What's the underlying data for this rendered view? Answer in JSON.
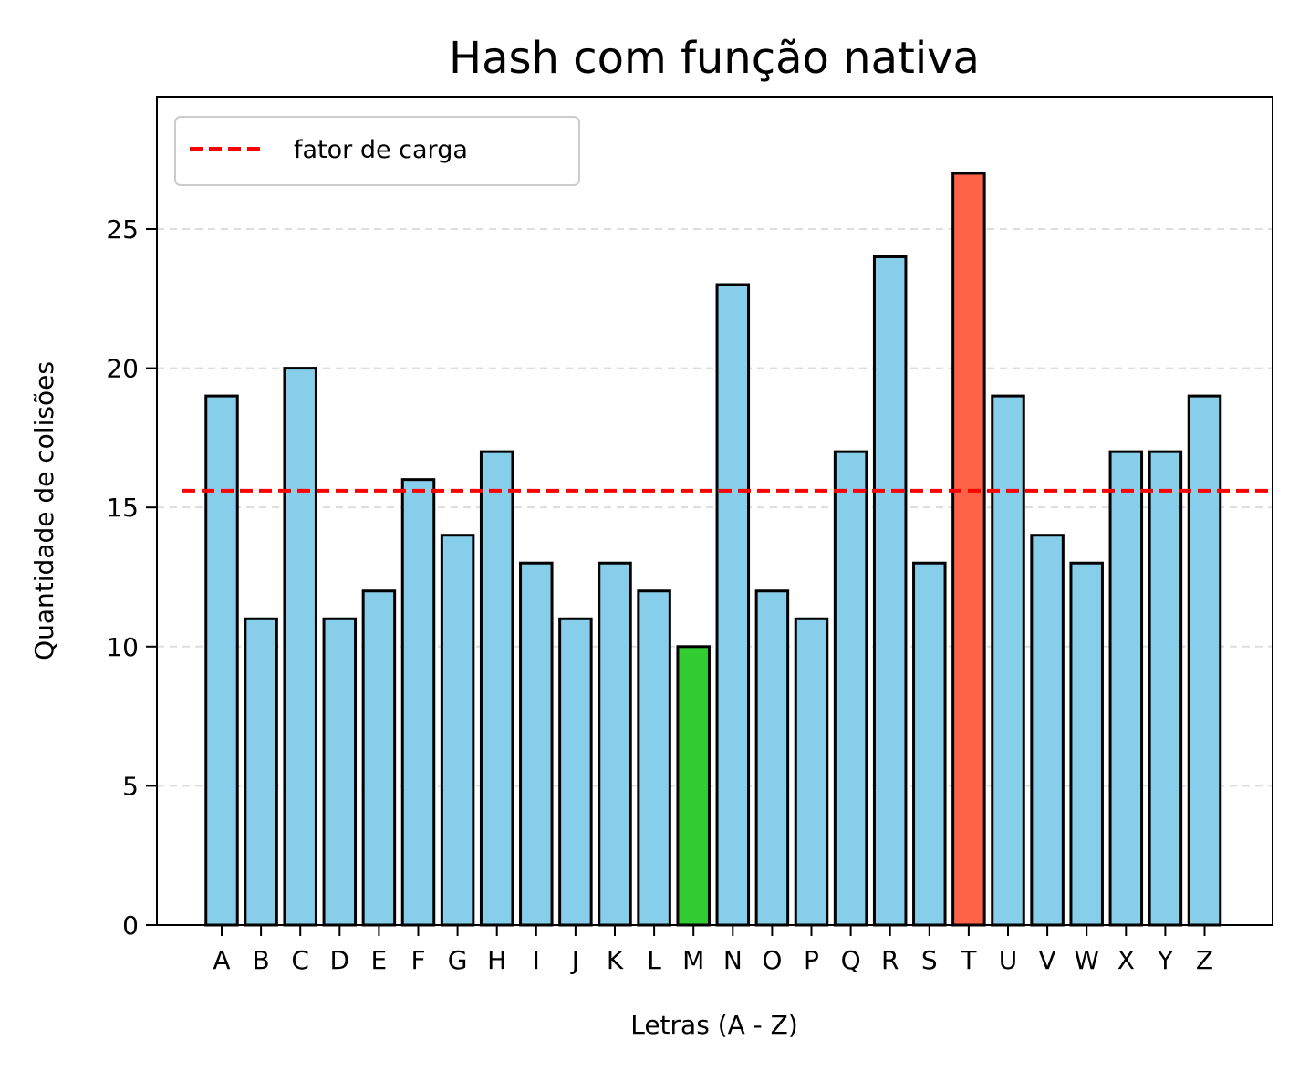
{
  "chart_data": {
    "type": "bar",
    "title": "Hash com função nativa",
    "xlabel": "Letras (A - Z)",
    "ylabel": "Quantidade de colisões",
    "categories": [
      "A",
      "B",
      "C",
      "D",
      "E",
      "F",
      "G",
      "H",
      "I",
      "J",
      "K",
      "L",
      "M",
      "N",
      "O",
      "P",
      "Q",
      "R",
      "S",
      "T",
      "U",
      "V",
      "W",
      "X",
      "Y",
      "Z"
    ],
    "values": [
      19,
      11,
      20,
      11,
      12,
      16,
      14,
      17,
      13,
      11,
      13,
      12,
      10,
      23,
      12,
      11,
      17,
      24,
      13,
      27,
      19,
      14,
      13,
      17,
      17,
      19
    ],
    "ylim": [
      0,
      29.75
    ],
    "yticks": [
      0,
      5,
      10,
      15,
      20,
      25
    ],
    "grid": "y-dashed",
    "reference_line": {
      "label": "fator de carga",
      "value": 15.6,
      "color": "#ff0000",
      "style": "dashed"
    },
    "colors": {
      "default_bar": "#87ceeb",
      "min_bar": "#32cd32",
      "max_bar": "#ff6347",
      "bar_edge": "#000000"
    },
    "highlight": {
      "min_category": "M",
      "max_category": "T"
    },
    "legend": {
      "position": "top-left",
      "entries": [
        "fator de carga"
      ]
    }
  }
}
